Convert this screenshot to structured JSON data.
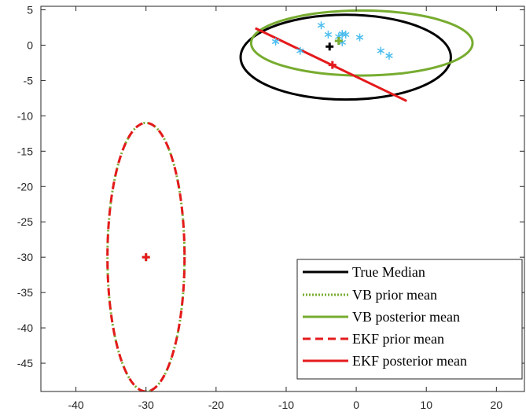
{
  "chart_data": {
    "type": "scatter",
    "title": "",
    "xlabel": "",
    "ylabel": "",
    "xlim": [
      -45,
      24
    ],
    "ylim": [
      -49,
      5.5
    ],
    "grid": false,
    "legend_position": "bottom-right",
    "xticks": [
      -40,
      -30,
      -20,
      -10,
      0,
      10,
      20
    ],
    "yticks": [
      5,
      0,
      -5,
      -10,
      -15,
      -20,
      -25,
      -30,
      -35,
      -40,
      -45
    ],
    "xtick_labels": [
      "-40",
      "-30",
      "-20",
      "-10",
      "0",
      "10",
      "20"
    ],
    "ytick_labels": [
      "5",
      "0",
      "-5",
      "-10",
      "-15",
      "-20",
      "-25",
      "-30",
      "-35",
      "-40",
      "-45"
    ],
    "observations": {
      "color": "#4DBEEE",
      "points": [
        [
          -11.5,
          0.5
        ],
        [
          -8,
          -0.8
        ],
        [
          -5,
          2.8
        ],
        [
          -4,
          1.5
        ],
        [
          -2.5,
          1.2
        ],
        [
          -2,
          1.6
        ],
        [
          -1.5,
          1.5
        ],
        [
          -2,
          0.4
        ],
        [
          0.5,
          1.1
        ],
        [
          3.5,
          -0.8
        ],
        [
          4.7,
          -1.5
        ]
      ]
    },
    "series": [
      {
        "name": "True Median",
        "style": "solid",
        "color": "#000000",
        "ellipse": {
          "center": [
            -1.5,
            -1.7
          ],
          "rx": 15,
          "ry": 6,
          "angle": 0
        },
        "mean": [
          -3.8,
          -0.2
        ]
      },
      {
        "name": "VB prior mean",
        "style": "dotted",
        "color": "#77AC30",
        "ellipse": {
          "center": [
            -30,
            -30
          ],
          "rx": 5.5,
          "ry": 19,
          "angle": 0
        },
        "mean": [
          -30,
          -30
        ]
      },
      {
        "name": "VB posterior mean",
        "style": "solid",
        "color": "#77AC30",
        "ellipse": {
          "center": [
            0.8,
            0.3
          ],
          "rx": 15.8,
          "ry": 4.6,
          "angle": 0
        },
        "mean": [
          -2.5,
          0.6
        ]
      },
      {
        "name": "EKF prior mean",
        "style": "dashed",
        "color": "#E41A1C",
        "ellipse": {
          "center": [
            -30,
            -30
          ],
          "rx": 5.5,
          "ry": 19,
          "angle": 0
        },
        "mean": [
          -30,
          -30
        ]
      },
      {
        "name": "EKF posterior mean",
        "style": "solid",
        "color": "#E41A1C",
        "segment": [
          [
            -14.4,
            2.4
          ],
          [
            7.2,
            -7.9
          ]
        ],
        "mean": [
          -3.4,
          -2.8
        ]
      }
    ]
  }
}
